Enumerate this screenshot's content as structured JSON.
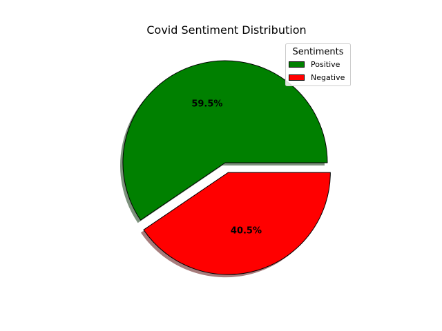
{
  "chart_data": {
    "type": "pie",
    "title": "Covid Sentiment Distribution",
    "legend_title": "Sentiments",
    "legend_position": "top-right",
    "start_angle_deg": 0,
    "direction": "counterclockwise",
    "shadow": true,
    "slices": [
      {
        "label": "Positive",
        "value": 59.5,
        "pct_label": "59.5%",
        "color": "#008000",
        "explode": 0
      },
      {
        "label": "Negative",
        "value": 40.5,
        "pct_label": "40.5%",
        "color": "#ff0000",
        "explode": 0.1
      }
    ]
  }
}
